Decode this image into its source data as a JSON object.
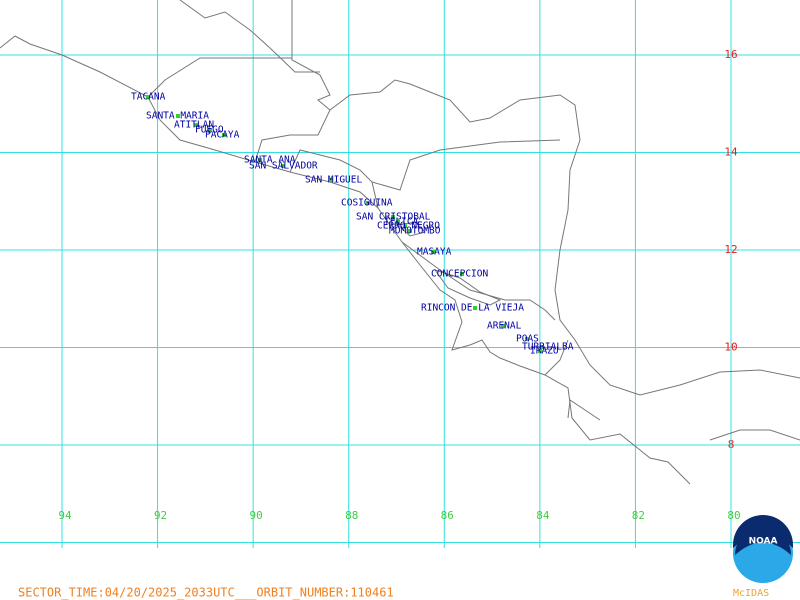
{
  "map": {
    "lat_labels": [
      16,
      14,
      12,
      10,
      8
    ],
    "lon_labels": [
      94,
      92,
      90,
      88,
      86,
      84,
      82,
      80
    ],
    "volcanoes": [
      "TACANA",
      "SANTA MARIA",
      "ATITLAN",
      "FUEGO",
      "PACAYA",
      "SANTA ANA",
      "SAN SALVADOR",
      "SAN MIGUEL",
      "COSIGUINA",
      "SAN CRISTOBAL",
      "TELICA",
      "CERRO NEGRO",
      "MOMOTOMBO",
      "MASAYA",
      "CONCEPCION",
      "RINCON DE LA VIEJA",
      "ARENAL",
      "POAS",
      "TURRIALBA",
      "IRAZU"
    ],
    "footer": "SECTOR_TIME:04/20/2025_2033UTC___ORBIT_NUMBER:110461",
    "logo_text": "NOAA",
    "credit": "McIDAS"
  }
}
